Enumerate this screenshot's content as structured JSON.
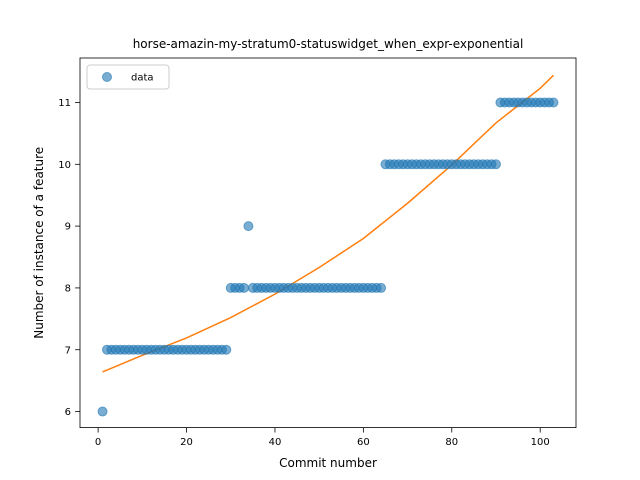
{
  "chart_data": {
    "type": "scatter",
    "title": "horse-amazin-my-stratum0-statuswidget_when_expr-exponential",
    "xlabel": "Commit number",
    "ylabel": "Number of instance of a feature",
    "xlim": [
      -4.1,
      108.1
    ],
    "ylim": [
      5.74,
      11.72
    ],
    "xticks": [
      0,
      20,
      40,
      60,
      80,
      100
    ],
    "yticks": [
      6,
      7,
      8,
      9,
      10,
      11
    ],
    "grid": false,
    "legend": {
      "placement": "top-left",
      "entries": [
        "data"
      ]
    },
    "colors": {
      "data": "#1f77b4",
      "fit": "#ff7f0e"
    },
    "series": [
      {
        "name": "data",
        "kind": "points",
        "runs": [
          {
            "x_start": 1,
            "x_end": 1,
            "y": 6
          },
          {
            "x_start": 2,
            "x_end": 29,
            "y": 7
          },
          {
            "x_start": 30,
            "x_end": 33,
            "y": 8
          },
          {
            "x_start": 34,
            "x_end": 34,
            "y": 9
          },
          {
            "x_start": 35,
            "x_end": 64,
            "y": 8
          },
          {
            "x_start": 65,
            "x_end": 90,
            "y": 10
          },
          {
            "x_start": 91,
            "x_end": 103,
            "y": 11
          }
        ]
      },
      {
        "kind": "line",
        "x": [
          1,
          10,
          20,
          30,
          40,
          50,
          60,
          70,
          80,
          90,
          100,
          103
        ],
        "y": [
          6.64,
          6.91,
          7.19,
          7.52,
          7.9,
          8.33,
          8.8,
          9.37,
          9.99,
          10.67,
          11.23,
          11.44
        ]
      }
    ]
  }
}
